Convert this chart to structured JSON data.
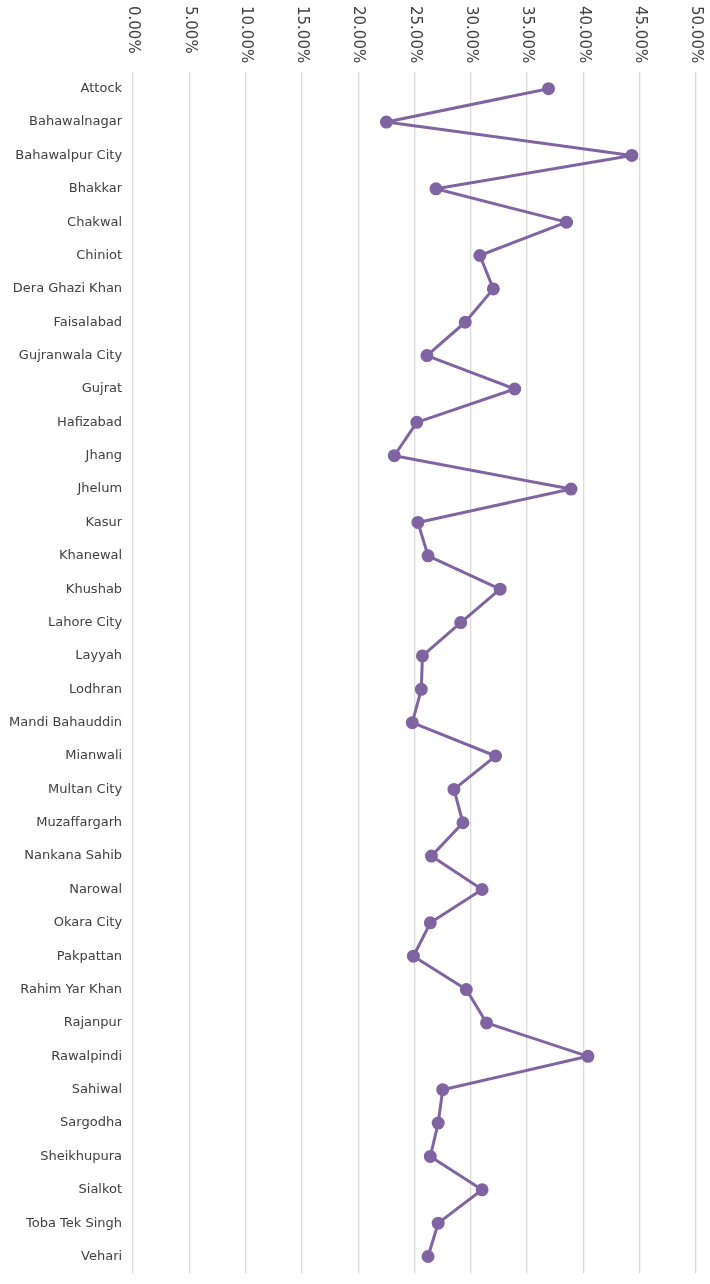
{
  "chart_data": {
    "type": "line",
    "orientation": "horizontal",
    "categories": [
      "Attock",
      "Bahawalnagar",
      "Bahawalpur City",
      "Bhakkar",
      "Chakwal",
      "Chiniot",
      "Dera Ghazi Khan",
      "Faisalabad",
      "Gujranwala City",
      "Gujrat",
      "Hafizabad",
      "Jhang",
      "Jhelum",
      "Kasur",
      "Khanewal",
      "Khushab",
      "Lahore City",
      "Layyah",
      "Lodhran",
      "Mandi Bahauddin",
      "Mianwali",
      "Multan City",
      "Muzaffargarh",
      "Nankana Sahib",
      "Narowal",
      "Okara City",
      "Pakpattan",
      "Rahim Yar Khan",
      "Rajanpur",
      "Rawalpindi",
      "Sahiwal",
      "Sargodha",
      "Sheikhupura",
      "Sialkot",
      "Toba Tek Singh",
      "Vehari"
    ],
    "series": [
      {
        "color": "#8064a2",
        "values": [
          36.9,
          22.5,
          44.3,
          26.9,
          38.5,
          30.8,
          32.0,
          29.5,
          26.1,
          33.9,
          25.2,
          23.2,
          38.9,
          25.3,
          26.2,
          32.6,
          29.1,
          25.7,
          25.6,
          24.8,
          32.2,
          28.5,
          29.3,
          26.5,
          31.0,
          26.4,
          24.9,
          29.6,
          31.4,
          40.4,
          27.5,
          27.1,
          26.4,
          31.0,
          27.1,
          26.2
        ]
      }
    ],
    "xlim": [
      0,
      50
    ],
    "xticks": [
      {
        "value": 0,
        "label": "0.00%"
      },
      {
        "value": 5,
        "label": "5.00%"
      },
      {
        "value": 10,
        "label": "10.00%"
      },
      {
        "value": 15,
        "label": "15.00%"
      },
      {
        "value": 20,
        "label": "20.00%"
      },
      {
        "value": 25,
        "label": "25.00%"
      },
      {
        "value": 30,
        "label": "30.00%"
      },
      {
        "value": 35,
        "label": "35.00%"
      },
      {
        "value": 40,
        "label": "40.00%"
      },
      {
        "value": 45,
        "label": "45.00%"
      },
      {
        "value": 50,
        "label": "50.00%"
      }
    ],
    "grid": "x",
    "legend": false,
    "marker": "circle",
    "line_style": "solid"
  }
}
